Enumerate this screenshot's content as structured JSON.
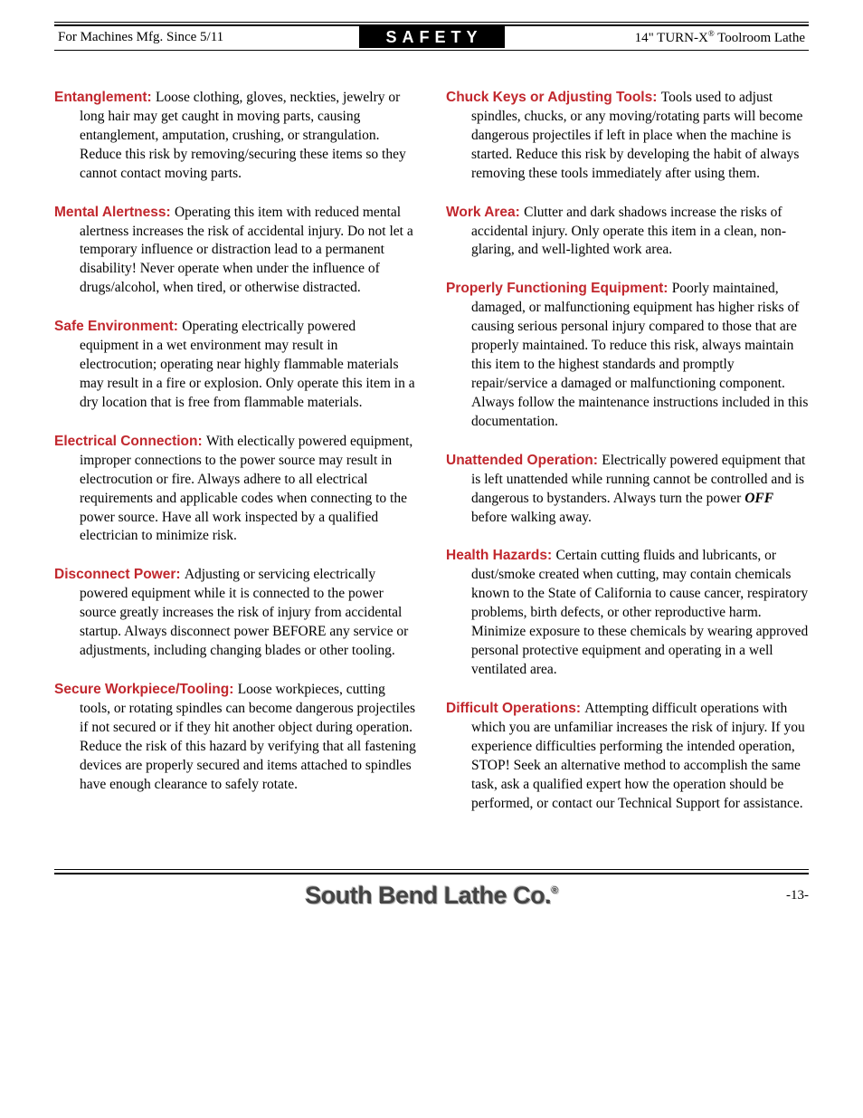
{
  "header": {
    "left": "For Machines Mfg. Since 5/11",
    "center": "SAFETY",
    "right_prefix": "14\" TURN-X",
    "right_reg": "®",
    "right_suffix": " Toolroom Lathe"
  },
  "left_col": [
    {
      "heading": "Entanglement:",
      "text": "Loose clothing, gloves, neckties, jewelry or long hair may get caught in moving parts, causing entanglement, amputation, crushing, or strangulation. Reduce this risk by removing/securing these items so they cannot contact moving parts."
    },
    {
      "heading": "Mental Alertness:",
      "text": "Operating this item with reduced mental alertness increases the risk of accidental injury. Do not let a temporary influence or distraction lead to a permanent disability! Never operate when under the influence of drugs/alcohol, when tired, or otherwise distracted."
    },
    {
      "heading": "Safe Environment:",
      "text": "Operating electrically powered equipment in a wet environment may result in electrocution; operating near highly flammable materials may result in a fire or explosion. Only operate this item in a dry location that is free from flammable materials."
    },
    {
      "heading": "Electrical Connection:",
      "text": "With electically powered equipment, improper connections to the power source may result in electrocution or fire. Always adhere to all electrical requirements and applicable codes when connecting to the power source. Have all work inspected by a qualified electrician to minimize risk."
    },
    {
      "heading": "Disconnect Power:",
      "text": "Adjusting or servicing electrically powered equipment while it is connected to the power source greatly increases the risk of injury from accidental startup. Always disconnect power BEFORE any service or adjustments, including changing blades or other tooling."
    },
    {
      "heading": "Secure Workpiece/Tooling:",
      "text": "Loose workpieces, cutting tools, or rotating spindles can become dangerous projectiles if not secured or if they hit another object during operation. Reduce the risk of this hazard by verifying that all fastening devices are properly secured and items attached to spindles have enough clearance to safely rotate."
    }
  ],
  "right_col": [
    {
      "heading": "Chuck Keys or Adjusting Tools:",
      "text": "Tools used to adjust spindles, chucks, or any moving/rotating parts will become dangerous projectiles if left in place when the machine is started. Reduce this risk by developing the habit of always removing these tools immediately after using them."
    },
    {
      "heading": "Work Area:",
      "text": "Clutter and dark shadows increase the risks of accidental injury. Only operate this item in a clean, non-glaring, and well-lighted work area."
    },
    {
      "heading": "Properly Functioning Equipment:",
      "text": "Poorly maintained, damaged, or malfunctioning equipment has higher risks of causing serious personal injury compared to those that are properly maintained. To reduce this risk, always maintain this item to the highest standards and promptly repair/service a damaged or malfunctioning component. Always follow the maintenance instructions included in this documentation."
    },
    {
      "heading": "Unattended Operation:",
      "text_before": "Electrically powered equipment that is left unattended while running cannot be controlled and is dangerous to bystanders. Always turn the power ",
      "off": "OFF",
      "text_after": " before walking away."
    },
    {
      "heading": "Health Hazards:",
      "text": "Certain cutting fluids and lubricants, or dust/smoke created when cutting, may contain chemicals known to the State of California to cause cancer, respiratory problems, birth defects, or other reproductive harm. Minimize exposure to these chemicals by wearing approved personal protective equipment and operating in a well ventilated area."
    },
    {
      "heading": "Difficult Operations:",
      "text": "Attempting difficult operations with which you are unfamiliar increases the risk of injury. If you experience difficulties performing the intended operation, STOP! Seek an alternative method to accomplish the same task, ask a qualified expert how the operation should be performed, or contact our Technical Support for assistance."
    }
  ],
  "footer": {
    "company": "South Bend Lathe Co.",
    "reg": "®",
    "page": "-13-"
  }
}
